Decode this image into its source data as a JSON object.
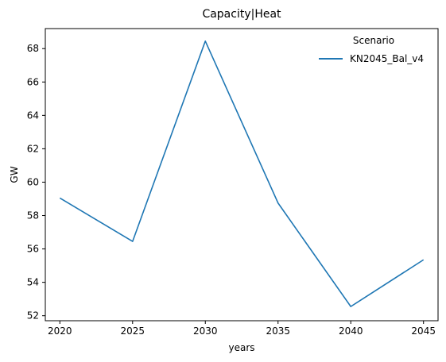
{
  "chart_data": {
    "type": "line",
    "title": "Capacity|Heat",
    "xlabel": "years",
    "ylabel": "GW",
    "x": [
      2020,
      2025,
      2030,
      2035,
      2040,
      2045
    ],
    "x_ticks": [
      "2020",
      "2025",
      "2030",
      "2035",
      "2040",
      "2045"
    ],
    "y_ticks": [
      "52",
      "54",
      "56",
      "58",
      "60",
      "62",
      "64",
      "66",
      "68"
    ],
    "ylim": [
      51.7,
      69.2
    ],
    "xlim": [
      2019,
      2046
    ],
    "grid": false,
    "legend": {
      "title": "Scenario",
      "placement": "top-right"
    },
    "series": [
      {
        "name": "KN2045_Bal_v4",
        "color": "#1f77b4",
        "values": [
          59.05,
          56.45,
          68.45,
          58.75,
          52.55,
          55.35
        ]
      }
    ]
  }
}
